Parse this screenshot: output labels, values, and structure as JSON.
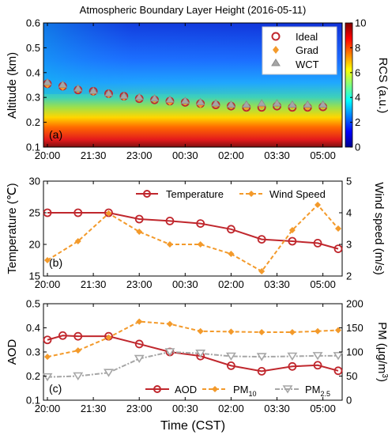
{
  "chart_data": [
    {
      "panel_label": "(a)",
      "type": "heatmap",
      "title": "Atmospheric Boundary Layer Height (2016-05-11)",
      "ylabel": "Altitude (km)",
      "ylim": [
        0.1,
        0.6
      ],
      "yticks": [
        "0.1",
        "0.2",
        "0.3",
        "0.4",
        "0.5",
        "0.6"
      ],
      "xticks": [
        "20:00",
        "21:30",
        "23:00",
        "00:30",
        "02:00",
        "03:30",
        "05:00"
      ],
      "colorbar": {
        "label": "RCS (a.u.)",
        "range": [
          0,
          10
        ],
        "ticks": [
          "0",
          "2",
          "4",
          "6",
          "8",
          "10"
        ]
      },
      "legend": {
        "position": "top-right",
        "entries": [
          "Ideal",
          "Grad",
          "WCT"
        ]
      },
      "series": [
        {
          "name": "Ideal",
          "color": "#c0272d",
          "marker": "circle",
          "x": [
            0,
            0.5,
            1,
            1.5,
            2,
            2.5,
            3,
            3.5,
            4,
            4.5,
            5,
            5.5,
            6,
            6.5,
            7,
            7.5,
            8,
            8.5,
            9
          ],
          "values": [
            0.355,
            0.345,
            0.33,
            0.325,
            0.315,
            0.305,
            0.295,
            0.29,
            0.285,
            0.28,
            0.275,
            0.27,
            0.265,
            0.26,
            0.26,
            0.265,
            0.26,
            0.26,
            0.262
          ]
        },
        {
          "name": "Grad",
          "color": "#f39a2b",
          "marker": "diamond",
          "x": [
            0,
            0.5,
            1,
            1.5,
            2,
            2.5,
            3,
            3.5,
            4,
            4.5,
            5,
            5.5,
            6,
            6.5,
            7,
            7.5,
            8,
            8.5,
            9
          ],
          "values": [
            0.35,
            0.34,
            0.33,
            0.32,
            0.31,
            0.3,
            0.295,
            0.29,
            0.28,
            0.28,
            0.27,
            0.27,
            0.265,
            0.26,
            0.265,
            0.27,
            0.265,
            0.26,
            0.265
          ]
        },
        {
          "name": "WCT",
          "color": "#a6a6a6",
          "marker": "triangle",
          "x": [
            0,
            0.5,
            1,
            1.5,
            2,
            2.5,
            3,
            3.5,
            4,
            4.5,
            5,
            5.5,
            6,
            6.5,
            7,
            7.5,
            8,
            8.5,
            9
          ],
          "values": [
            0.36,
            0.35,
            0.335,
            0.325,
            0.315,
            0.305,
            0.3,
            0.295,
            0.29,
            0.285,
            0.28,
            0.275,
            0.27,
            0.27,
            0.275,
            0.275,
            0.27,
            0.27,
            0.27
          ]
        }
      ]
    },
    {
      "panel_label": "(b)",
      "type": "line",
      "xticks": [
        "20:00",
        "21:30",
        "23:00",
        "00:30",
        "02:00",
        "03:30",
        "05:00"
      ],
      "ylabel": "Temperature (℃)",
      "ylim": [
        15,
        30
      ],
      "yticks": [
        "15",
        "20",
        "25",
        "30"
      ],
      "y2label": "Wind speed (m/s)",
      "y2lim": [
        2,
        5
      ],
      "y2ticks": [
        "2",
        "3",
        "4",
        "5"
      ],
      "legend": {
        "position": "top",
        "entries": [
          "Temperature",
          "Wind Speed"
        ]
      },
      "series": [
        {
          "name": "Temperature",
          "axis": "left",
          "color": "#c0272d",
          "marker": "circle",
          "x": [
            0,
            1,
            2,
            3,
            4,
            5,
            6,
            7,
            8,
            8.83,
            9.5
          ],
          "values": [
            25,
            25,
            25,
            24,
            23.7,
            23.3,
            22.4,
            20.8,
            20.5,
            20.2,
            19.3
          ]
        },
        {
          "name": "Wind Speed",
          "axis": "right",
          "color": "#f39a2b",
          "marker": "diamond",
          "dashed": true,
          "x": [
            0,
            1,
            2,
            3,
            4,
            5,
            6,
            7,
            8,
            8.83,
            9.5
          ],
          "values": [
            2.5,
            3.1,
            3.98,
            3.4,
            3.0,
            3.0,
            2.7,
            2.15,
            3.45,
            4.25,
            3.5
          ]
        }
      ]
    },
    {
      "panel_label": "(c)",
      "type": "line",
      "xticks": [
        "20:00",
        "21:30",
        "23:00",
        "00:30",
        "02:00",
        "03:30",
        "05:00"
      ],
      "xlabel": "Time (CST)",
      "ylabel": "AOD",
      "ylim": [
        0.1,
        0.5
      ],
      "yticks": [
        "0.1",
        "0.2",
        "0.3",
        "0.4",
        "0.5"
      ],
      "y2label": "PM (μg/m³)",
      "y2lim": [
        0,
        200
      ],
      "y2ticks": [
        "0",
        "50",
        "100",
        "150",
        "200"
      ],
      "legend": {
        "position": "bottom",
        "entries": [
          "AOD",
          "PM10",
          "PM2.5"
        ]
      },
      "series": [
        {
          "name": "AOD",
          "axis": "left",
          "color": "#c0272d",
          "marker": "circle",
          "x": [
            0,
            0.5,
            1,
            2,
            3,
            4,
            5,
            6,
            7,
            8,
            8.83,
            9.5
          ],
          "values": [
            0.35,
            0.368,
            0.365,
            0.365,
            0.333,
            0.3,
            0.283,
            0.243,
            0.22,
            0.24,
            0.245,
            0.222
          ]
        },
        {
          "name": "PM10",
          "axis": "right",
          "color": "#f39a2b",
          "marker": "diamond",
          "dashed": true,
          "x": [
            0,
            1,
            2,
            3,
            4,
            5,
            6,
            7,
            8,
            8.83,
            9.5
          ],
          "values": [
            90,
            103,
            130,
            163,
            158,
            143,
            142,
            141,
            141,
            143,
            145
          ]
        },
        {
          "name": "PM2.5",
          "axis": "right",
          "color": "#a6a6a6",
          "marker": "triangle-down",
          "dashed": true,
          "x": [
            0,
            1,
            2,
            3,
            4,
            5,
            6,
            7,
            8,
            8.83,
            9.5
          ],
          "values": [
            48,
            50,
            57,
            86,
            100,
            97,
            91,
            90,
            91,
            92,
            92
          ]
        }
      ]
    }
  ]
}
